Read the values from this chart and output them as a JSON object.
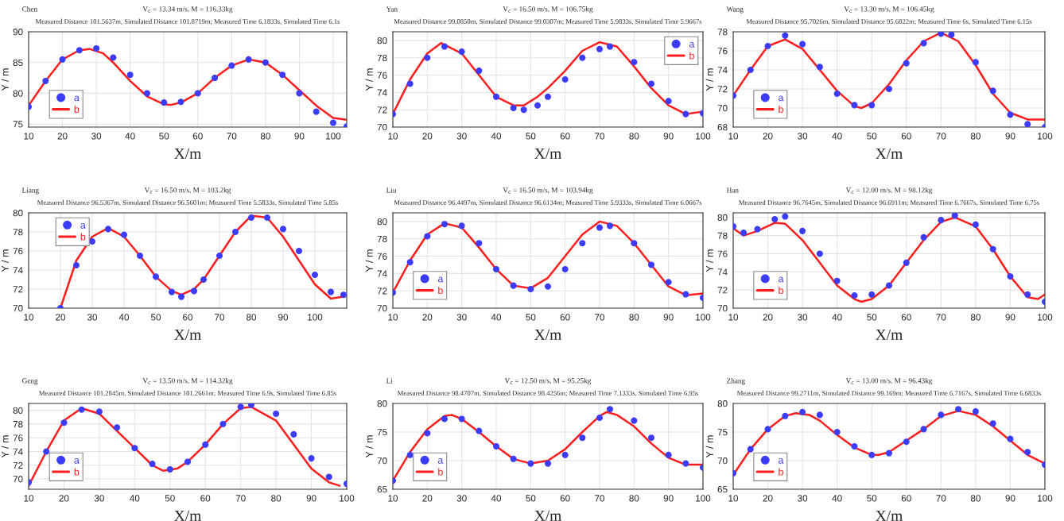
{
  "chart_data": [
    {
      "type": "line",
      "title": "Chen",
      "subtitle": "V$_{c}$ = 13.34 m/s, M = 116.33kg",
      "annotations": [
        "Measured Distance 101.5637m, Simulated Distance 101.8719m; Measured Time 6.1833s, Simulated Time 6.1s"
      ],
      "xlabel": "X/m",
      "ylabel": "Y / m",
      "xlim": [
        10,
        104
      ],
      "xticks": [
        10,
        20,
        30,
        40,
        50,
        60,
        70,
        80,
        90,
        100
      ],
      "ylim": [
        74.5,
        90
      ],
      "yticks": [
        75,
        80,
        85,
        90
      ],
      "grid": true,
      "legend": "bottom left",
      "series": [
        {
          "name": "a",
          "type": "scatter",
          "marker": "circle",
          "color": "#3c3cff",
          "x": [
            10,
            15,
            20,
            25,
            30,
            35,
            40,
            45,
            50,
            55,
            60,
            65,
            70,
            75,
            80,
            85,
            90,
            95,
            100,
            104
          ],
          "values": [
            77.8,
            82,
            85.5,
            87,
            87.3,
            85.8,
            83,
            80,
            78.5,
            78.6,
            80,
            82.5,
            84.5,
            85.5,
            85,
            83,
            80,
            77,
            75.2,
            74.6
          ]
        },
        {
          "name": "b",
          "type": "line",
          "color": "#ff1e1e",
          "x": [
            10,
            15,
            20,
            25,
            28,
            32,
            35,
            40,
            45,
            50,
            52,
            55,
            60,
            65,
            70,
            75,
            80,
            85,
            90,
            95,
            100,
            104
          ],
          "values": [
            78,
            82,
            85.5,
            87,
            87.2,
            86.5,
            85,
            82,
            79.5,
            78.2,
            78.1,
            78.5,
            80,
            82.5,
            84.5,
            85.5,
            85,
            83,
            80.5,
            78,
            76,
            75.7
          ]
        }
      ]
    },
    {
      "type": "line",
      "title": "Yan",
      "subtitle": "V$_{c}$ = 16.50 m/s, M = 106.75kg",
      "annotations": [
        "Measured Distance 99.0850m, Simulated Distance 99.0307m; Measured Time 5.9833s, Simulated Time 5.9667s"
      ],
      "xlabel": "X/m",
      "ylabel": "Y / m",
      "xlim": [
        10,
        100
      ],
      "xticks": [
        10,
        20,
        30,
        40,
        50,
        60,
        70,
        80,
        90,
        100
      ],
      "ylim": [
        70,
        81
      ],
      "yticks": [
        70,
        72,
        74,
        76,
        78,
        80
      ],
      "grid": true,
      "legend": "top right",
      "series": [
        {
          "name": "a",
          "type": "scatter",
          "marker": "circle",
          "color": "#3c3cff",
          "x": [
            10,
            15,
            20,
            25,
            30,
            35,
            40,
            45,
            48,
            52,
            55,
            60,
            65,
            70,
            73,
            80,
            85,
            90,
            95,
            100
          ],
          "values": [
            71.5,
            75,
            78,
            79.3,
            78.7,
            76.5,
            73.5,
            72.2,
            72,
            72.5,
            73.5,
            75.5,
            78,
            79,
            79.3,
            77.5,
            75,
            73,
            71.5,
            71.6
          ]
        },
        {
          "name": "b",
          "type": "line",
          "color": "#ff1e1e",
          "x": [
            10,
            15,
            20,
            24,
            30,
            35,
            40,
            45,
            48,
            52,
            55,
            60,
            65,
            70,
            75,
            80,
            85,
            90,
            95,
            100
          ],
          "values": [
            71.5,
            75.5,
            78.5,
            79.7,
            78.5,
            76,
            73.5,
            72.5,
            72.5,
            73.5,
            74.5,
            76.5,
            78.8,
            79.8,
            79.3,
            77,
            74.5,
            72.5,
            71.5,
            71.8
          ]
        }
      ]
    },
    {
      "type": "line",
      "title": "Wang",
      "subtitle": "V$_{c}$ = 13.30 m/s, M = 106.45kg",
      "annotations": [
        "Measured Distance 95.7026m, Simulated Distance 95.6822m; Measured Time 6s, Simulated Time 6.15s"
      ],
      "xlabel": "X/m",
      "ylabel": "Y / m",
      "xlim": [
        10,
        100
      ],
      "xticks": [
        10,
        20,
        30,
        40,
        50,
        60,
        70,
        80,
        90,
        100
      ],
      "ylim": [
        68,
        78
      ],
      "yticks": [
        68,
        70,
        72,
        74,
        76,
        78
      ],
      "grid": true,
      "legend": "bottom left",
      "series": [
        {
          "name": "a",
          "type": "scatter",
          "marker": "circle",
          "color": "#3c3cff",
          "x": [
            10,
            15,
            20,
            25,
            30,
            35,
            40,
            45,
            50,
            55,
            60,
            65,
            70,
            73,
            80,
            85,
            90,
            95,
            100
          ],
          "values": [
            71.3,
            74,
            76.5,
            77.6,
            76.7,
            74.3,
            71.5,
            70.3,
            70.3,
            72,
            74.7,
            76.8,
            77.8,
            77.7,
            74.8,
            71.8,
            69.3,
            68.3,
            68
          ]
        },
        {
          "name": "b",
          "type": "line",
          "color": "#ff1e1e",
          "x": [
            10,
            15,
            20,
            25,
            30,
            35,
            40,
            45,
            47,
            50,
            55,
            60,
            65,
            70,
            75,
            80,
            85,
            90,
            95,
            100
          ],
          "values": [
            71.3,
            74,
            76.5,
            77.2,
            76.2,
            74,
            71.8,
            70.2,
            70,
            70.5,
            72.5,
            75,
            77,
            77.9,
            77,
            74.5,
            71.5,
            69.5,
            68.8,
            68.8
          ]
        }
      ]
    },
    {
      "type": "line",
      "title": "Liang",
      "subtitle": "V$_{c}$ = 16.50 m/s, M = 103.2kg",
      "annotations": [
        "Measured Distance 96.5367m, Simulated Distance 96.5601m; Measured Time 5.5833s, Simulated Time 5.85s"
      ],
      "xlabel": "X/m",
      "ylabel": "Y / m",
      "xlim": [
        10,
        110
      ],
      "xticks": [
        10,
        20,
        30,
        40,
        50,
        60,
        70,
        80,
        90,
        100
      ],
      "ylim": [
        70,
        80
      ],
      "yticks": [
        70,
        72,
        74,
        76,
        78,
        80
      ],
      "grid": true,
      "legend": "top left",
      "series": [
        {
          "name": "a",
          "type": "scatter",
          "marker": "circle",
          "color": "#3c3cff",
          "x": [
            20,
            25,
            30,
            35,
            40,
            45,
            50,
            55,
            58,
            62,
            65,
            70,
            75,
            80,
            85,
            90,
            95,
            100,
            105,
            109
          ],
          "values": [
            70,
            74.5,
            77,
            78.3,
            77.7,
            75.5,
            73.3,
            71.7,
            71.2,
            71.8,
            73,
            75.5,
            78,
            79.5,
            79.5,
            78.3,
            76,
            73.5,
            71.7,
            71.4
          ]
        },
        {
          "name": "b",
          "type": "line",
          "color": "#ff1e1e",
          "x": [
            20,
            25,
            30,
            35,
            40,
            45,
            50,
            55,
            58,
            62,
            65,
            70,
            75,
            80,
            85,
            90,
            95,
            100,
            105,
            109
          ],
          "values": [
            70,
            75,
            77.5,
            78.4,
            77.5,
            75.5,
            73.3,
            71.8,
            71.4,
            72,
            73,
            75.5,
            78,
            79.7,
            79.5,
            77.5,
            75,
            72.5,
            71,
            71.2
          ]
        }
      ]
    },
    {
      "type": "line",
      "title": "Liu",
      "subtitle": "V$_{c}$ = 16.50 m/s, M = 103.94kg",
      "annotations": [
        "Measured Distance 96.4497m, Simulated Distance 96.6134m; Measured Time 5.9333s, Simulated Time 6.0667s"
      ],
      "xlabel": "X/m",
      "ylabel": "Y / m",
      "xlim": [
        10,
        100
      ],
      "xticks": [
        10,
        20,
        30,
        40,
        50,
        60,
        70,
        80,
        90,
        100
      ],
      "ylim": [
        70,
        81
      ],
      "yticks": [
        70,
        72,
        74,
        76,
        78,
        80
      ],
      "grid": true,
      "legend": "bottom left",
      "series": [
        {
          "name": "a",
          "type": "scatter",
          "marker": "circle",
          "color": "#3c3cff",
          "x": [
            10,
            15,
            20,
            25,
            30,
            35,
            40,
            45,
            50,
            55,
            60,
            65,
            70,
            73,
            80,
            85,
            90,
            95,
            100
          ],
          "values": [
            71.8,
            75.3,
            78.3,
            79.7,
            79.5,
            77.5,
            74.5,
            72.6,
            72.2,
            72.5,
            74.5,
            77.5,
            79.3,
            79.5,
            77.5,
            75,
            73,
            71.6,
            71.2
          ]
        },
        {
          "name": "b",
          "type": "line",
          "color": "#ff1e1e",
          "x": [
            10,
            15,
            20,
            25,
            30,
            35,
            40,
            45,
            50,
            55,
            60,
            65,
            70,
            75,
            80,
            85,
            90,
            95,
            100
          ],
          "values": [
            71.8,
            75.5,
            78.5,
            79.8,
            79.3,
            77,
            74.5,
            72.6,
            72.3,
            73.5,
            76,
            78.5,
            80,
            79.5,
            77.5,
            75,
            72.5,
            71.5,
            71.7
          ]
        }
      ]
    },
    {
      "type": "line",
      "title": "Han",
      "subtitle": "V$_{c}$ = 12.00 m/s, M = 98.12kg",
      "annotations": [
        "Measured Distance 96.7645m, Simulated Distance 96.6911m; Measured Time 6.7667s, Simulated Time 6.75s"
      ],
      "xlabel": "X/m",
      "ylabel": "Y / m",
      "xlim": [
        10,
        100
      ],
      "xticks": [
        10,
        20,
        30,
        40,
        50,
        60,
        70,
        80,
        90,
        100
      ],
      "ylim": [
        70,
        80.5
      ],
      "yticks": [
        70,
        72,
        74,
        76,
        78,
        80
      ],
      "grid": true,
      "legend": "bottom left",
      "series": [
        {
          "name": "a",
          "type": "scatter",
          "marker": "circle",
          "color": "#3c3cff",
          "x": [
            10,
            13,
            17,
            22,
            25,
            30,
            35,
            40,
            45,
            50,
            55,
            60,
            65,
            70,
            74,
            80,
            85,
            90,
            95,
            100
          ],
          "values": [
            79,
            78.3,
            78.7,
            79.8,
            80.1,
            78.5,
            76,
            73,
            71.4,
            71.5,
            72.5,
            75,
            77.8,
            79.7,
            80.2,
            79.2,
            76.5,
            73.5,
            71.5,
            70.7
          ]
        },
        {
          "name": "b",
          "type": "line",
          "color": "#ff1e1e",
          "x": [
            10,
            13,
            17,
            22,
            25,
            30,
            35,
            40,
            45,
            47,
            50,
            55,
            60,
            65,
            70,
            74,
            80,
            85,
            90,
            95,
            98,
            100
          ],
          "values": [
            78.8,
            78,
            78.5,
            79.4,
            79.3,
            77.5,
            75,
            72.5,
            71,
            70.7,
            71,
            72.5,
            75,
            77.5,
            79.5,
            80,
            79,
            76.5,
            73.5,
            71.2,
            71,
            71.5
          ]
        }
      ]
    },
    {
      "type": "line",
      "title": "Geng",
      "subtitle": "V$_{c}$ = 13.50 m/s, M = 114.32kg",
      "annotations": [
        "Measured Distance 101.2845m, Simulated Distance 101.2661m; Measured Time 6.9s, Simulated Time 6.85s"
      ],
      "xlabel": "X/m",
      "ylabel": "Y / m",
      "xlim": [
        10,
        100
      ],
      "xticks": [
        10,
        20,
        30,
        40,
        50,
        60,
        70,
        80,
        90,
        100
      ],
      "ylim": [
        68.5,
        81
      ],
      "yticks": [
        70,
        72,
        74,
        76,
        78,
        80
      ],
      "grid": true,
      "legend": "bottom left",
      "series": [
        {
          "name": "a",
          "type": "scatter",
          "marker": "circle",
          "color": "#3c3cff",
          "x": [
            10,
            15,
            20,
            25,
            30,
            35,
            40,
            45,
            50,
            55,
            60,
            65,
            70,
            73,
            80,
            85,
            90,
            95,
            100
          ],
          "values": [
            69.5,
            74,
            78.2,
            80.1,
            79.8,
            77.5,
            74.5,
            72.2,
            71.4,
            72.5,
            75,
            78,
            80.5,
            80.8,
            79.5,
            76.5,
            73,
            70.3,
            69.3
          ]
        },
        {
          "name": "b",
          "type": "line",
          "color": "#ff1e1e",
          "x": [
            10,
            15,
            20,
            25,
            30,
            35,
            40,
            45,
            48,
            52,
            55,
            60,
            65,
            70,
            73,
            80,
            85,
            90,
            95,
            98
          ],
          "values": [
            69,
            74,
            78.5,
            80.3,
            79.5,
            77,
            74.5,
            72,
            71.2,
            71.5,
            72.5,
            75,
            78,
            80.3,
            80.5,
            78.5,
            75,
            71.5,
            69.5,
            69
          ]
        }
      ]
    },
    {
      "type": "line",
      "title": "Li",
      "subtitle": "V$_{c}$ = 12.50 m/s, M = 95.25kg",
      "annotations": [
        "Measured Distance 98.4707m, Simulated Distance 98.4256m; Measured Time 7.1333s, Simulated Time 6.95s"
      ],
      "xlabel": "X/m",
      "ylabel": "Y / m",
      "xlim": [
        10,
        100
      ],
      "xticks": [
        10,
        20,
        30,
        40,
        50,
        60,
        70,
        80,
        90,
        100
      ],
      "ylim": [
        65,
        80
      ],
      "yticks": [
        65,
        70,
        75,
        80
      ],
      "grid": true,
      "legend": "bottom left",
      "series": [
        {
          "name": "a",
          "type": "scatter",
          "marker": "circle",
          "color": "#3c3cff",
          "x": [
            10,
            15,
            20,
            25,
            30,
            35,
            40,
            45,
            50,
            55,
            60,
            65,
            70,
            73,
            80,
            85,
            90,
            95,
            100
          ],
          "values": [
            66.5,
            71,
            74.8,
            77.3,
            77.3,
            75.2,
            72.5,
            70.3,
            69.5,
            69.5,
            71,
            74,
            77.5,
            79,
            77,
            74,
            71,
            69.5,
            68.8
          ]
        },
        {
          "name": "b",
          "type": "line",
          "color": "#ff1e1e",
          "x": [
            10,
            15,
            20,
            25,
            27,
            30,
            35,
            40,
            45,
            50,
            55,
            60,
            65,
            70,
            72,
            75,
            80,
            85,
            90,
            95,
            100
          ],
          "values": [
            66.5,
            71.5,
            75.5,
            77.8,
            78,
            77.3,
            75,
            72.5,
            70.3,
            69.5,
            70,
            72,
            75,
            77.8,
            78.5,
            78,
            76,
            73,
            70.5,
            69.3,
            69.3
          ]
        }
      ]
    },
    {
      "type": "line",
      "title": "Zhang",
      "subtitle": "V$_{c}$ = 13.00 m/s, M = 96.43kg",
      "annotations": [
        "Measured Distance 99.2711m, Simulated Distance 99.169m; Measured Time 6.7167s, Simulated Time 6.6833s"
      ],
      "xlabel": "X/m",
      "ylabel": "Y / m",
      "xlim": [
        10,
        100
      ],
      "xticks": [
        10,
        20,
        30,
        40,
        50,
        60,
        70,
        80,
        90,
        100
      ],
      "ylim": [
        65,
        80
      ],
      "yticks": [
        65,
        70,
        75,
        80
      ],
      "grid": true,
      "legend": "bottom left",
      "series": [
        {
          "name": "a",
          "type": "scatter",
          "marker": "circle",
          "color": "#3c3cff",
          "x": [
            10,
            15,
            20,
            25,
            30,
            35,
            40,
            45,
            50,
            55,
            60,
            65,
            70,
            75,
            80,
            85,
            90,
            95,
            100
          ],
          "values": [
            67.8,
            72,
            75.5,
            77.8,
            78.5,
            78,
            75,
            72.5,
            71,
            71.3,
            73.3,
            75.5,
            78,
            79,
            78.6,
            76.5,
            73.8,
            71.5,
            69.3
          ]
        },
        {
          "name": "b",
          "type": "line",
          "color": "#ff1e1e",
          "x": [
            10,
            15,
            20,
            25,
            28,
            32,
            35,
            40,
            45,
            50,
            52,
            55,
            60,
            65,
            70,
            75,
            80,
            85,
            90,
            95,
            100
          ],
          "values": [
            67.5,
            72,
            75.5,
            77.8,
            78.3,
            78,
            77,
            74.5,
            72.3,
            71,
            71,
            71.5,
            73.5,
            75.5,
            77.8,
            78.7,
            78,
            76,
            73.5,
            71,
            69.5
          ]
        }
      ]
    }
  ]
}
